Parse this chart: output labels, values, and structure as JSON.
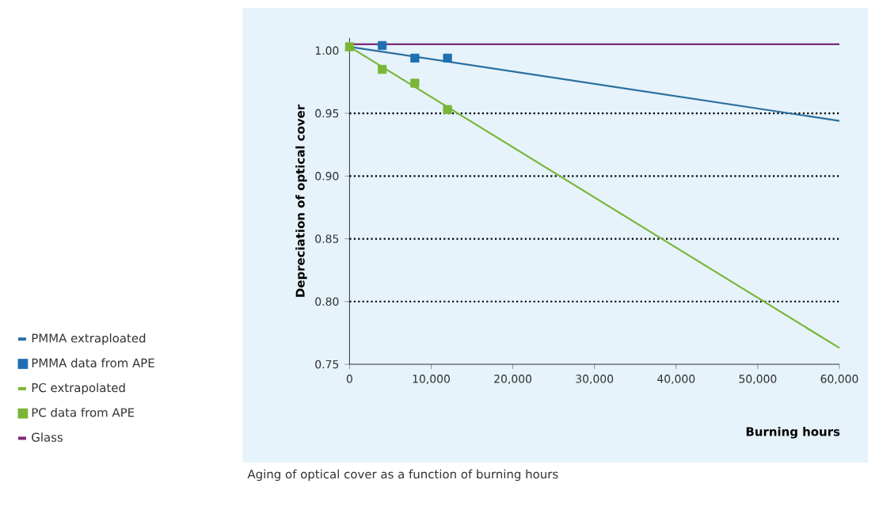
{
  "chart_data": {
    "type": "line",
    "xlabel": "Burning hours",
    "ylabel": "Depreciation of optical cover",
    "xlim": [
      0,
      60000
    ],
    "ylim": [
      0.75,
      1.01
    ],
    "xticks": [
      {
        "value": 0,
        "label": "0"
      },
      {
        "value": 10000,
        "label": "10,000"
      },
      {
        "value": 20000,
        "label": "20,000"
      },
      {
        "value": 30000,
        "label": "30,000"
      },
      {
        "value": 40000,
        "label": "40,000"
      },
      {
        "value": 50000,
        "label": "50,000"
      },
      {
        "value": 60000,
        "label": "60,000"
      }
    ],
    "yticks": [
      {
        "value": 0.75,
        "label": "0.75"
      },
      {
        "value": 0.8,
        "label": "0.80"
      },
      {
        "value": 0.85,
        "label": "0.85"
      },
      {
        "value": 0.9,
        "label": "0.90"
      },
      {
        "value": 0.95,
        "label": "0.95"
      },
      {
        "value": 1.0,
        "label": "1.00"
      }
    ],
    "legend": "left",
    "ref_lines": [
      {
        "axis": "y",
        "value": 0.8,
        "label": null,
        "color": "#000000",
        "line_style": "dotted"
      },
      {
        "axis": "y",
        "value": 0.85,
        "label": null,
        "color": "#000000",
        "line_style": "dotted"
      },
      {
        "axis": "y",
        "value": 0.9,
        "label": null,
        "color": "#000000",
        "line_style": "dotted"
      },
      {
        "axis": "y",
        "value": 0.95,
        "label": null,
        "color": "#000000",
        "line_style": "dotted"
      }
    ],
    "series": [
      {
        "name": "PMMA extraploated",
        "marker": "none",
        "color": "#2a6f9e",
        "x": [
          0,
          60000
        ],
        "values": [
          1.003,
          0.944
        ]
      },
      {
        "name": "PMMA data from APE",
        "type": "scatter",
        "marker": "square",
        "color": "#1f6fb2",
        "x": [
          4000,
          8000,
          12000
        ],
        "values": [
          1.004,
          0.994,
          0.994
        ]
      },
      {
        "name": "PC extrapolated",
        "marker": "none",
        "color": "#7ab536",
        "x": [
          0,
          60000
        ],
        "values": [
          1.003,
          0.763
        ]
      },
      {
        "name": "PC data from APE",
        "type": "scatter",
        "marker": "square",
        "color": "#7ab536",
        "x": [
          0,
          4000,
          8000,
          12000
        ],
        "values": [
          1.003,
          0.985,
          0.974,
          0.953
        ]
      },
      {
        "name": "Glass",
        "marker": "none",
        "color": "#7b2a7a",
        "x": [
          0,
          60000
        ],
        "values": [
          1.005,
          1.005
        ]
      }
    ],
    "annotations": [
      "Aging of optical cover as a function of burning hours"
    ]
  }
}
